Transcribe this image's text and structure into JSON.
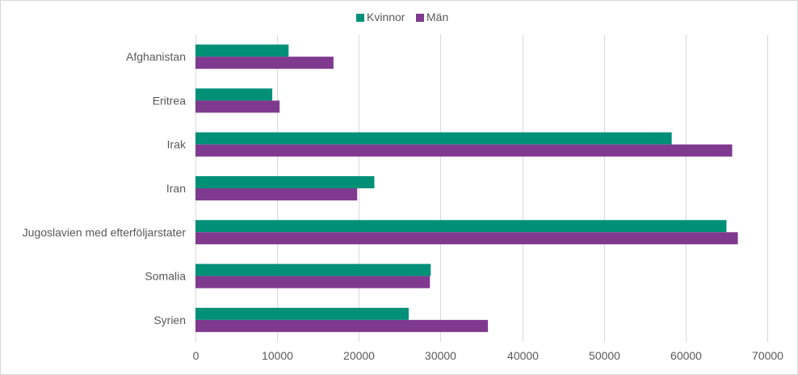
{
  "colors": {
    "kvinnor": "#009078",
    "man": "#7f3a8f",
    "grid": "#d9d9d9",
    "text": "#595959"
  },
  "chart_data": {
    "type": "bar",
    "orientation": "horizontal",
    "categories": [
      "Afghanistan",
      "Eritrea",
      "Irak",
      "Iran",
      "Jugoslavien med efterföljarstater",
      "Somalia",
      "Syrien"
    ],
    "series": [
      {
        "name": "Kvinnor",
        "color": "#009078",
        "values": [
          11400,
          9400,
          58300,
          21900,
          65000,
          28800,
          26100
        ]
      },
      {
        "name": "Män",
        "color": "#7f3a8f",
        "values": [
          16900,
          10300,
          65700,
          19800,
          66400,
          28700,
          35800
        ]
      }
    ],
    "xlim": [
      0,
      70000
    ],
    "xticks": [
      0,
      10000,
      20000,
      30000,
      40000,
      50000,
      60000,
      70000
    ],
    "grid": true,
    "legend": "top-center",
    "title": "",
    "xlabel": "",
    "ylabel": ""
  }
}
